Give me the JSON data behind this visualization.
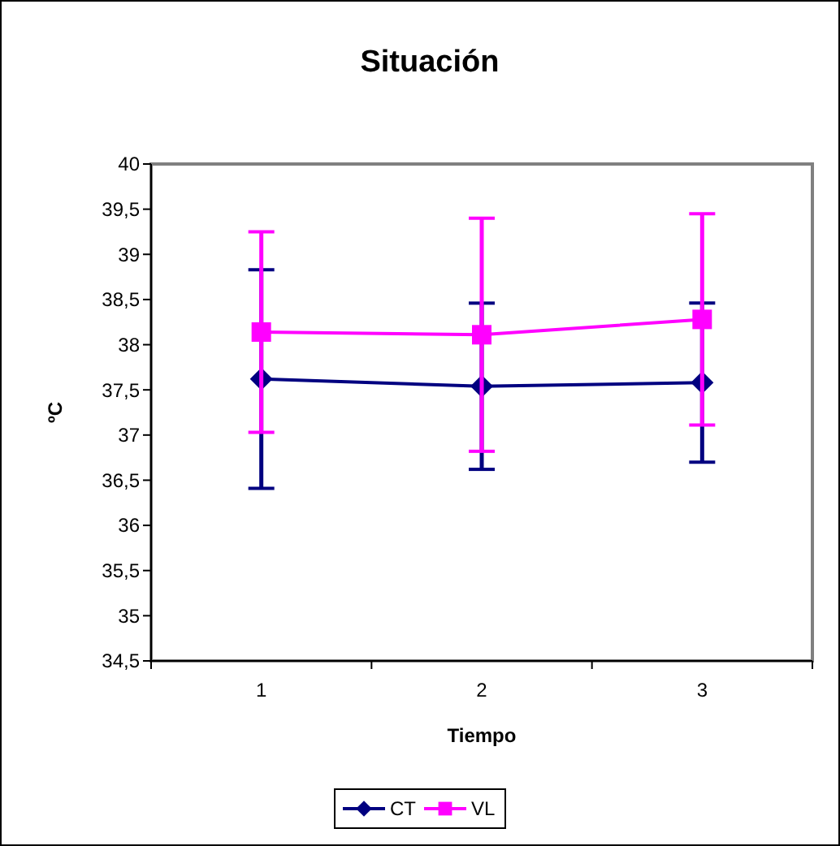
{
  "chart_data": {
    "type": "line",
    "title": "Situación",
    "xlabel": "Tiempo",
    "ylabel": "ºC",
    "categories": [
      "1",
      "2",
      "3"
    ],
    "series": [
      {
        "name": "CT",
        "color": "#000080",
        "marker": "diamond",
        "values": [
          37.62,
          37.54,
          37.58
        ],
        "errors": [
          1.21,
          0.92,
          0.88
        ]
      },
      {
        "name": "VL",
        "color": "#ff00ff",
        "marker": "square",
        "values": [
          38.14,
          38.11,
          38.28
        ],
        "errors": [
          1.11,
          1.29,
          1.17
        ]
      }
    ],
    "ylim": [
      34.5,
      40
    ],
    "yticks": [
      {
        "value": 34.5,
        "label": "34,5"
      },
      35,
      {
        "value": 35.5,
        "label": "35,5"
      },
      36,
      {
        "value": 36.5,
        "label": "36,5"
      },
      37,
      {
        "value": 37.5,
        "label": "37,5"
      },
      38,
      {
        "value": 38.5,
        "label": "38,5"
      },
      39,
      {
        "value": 39.5,
        "label": "39,5"
      },
      40
    ],
    "grid": false,
    "legend": "bottom"
  }
}
